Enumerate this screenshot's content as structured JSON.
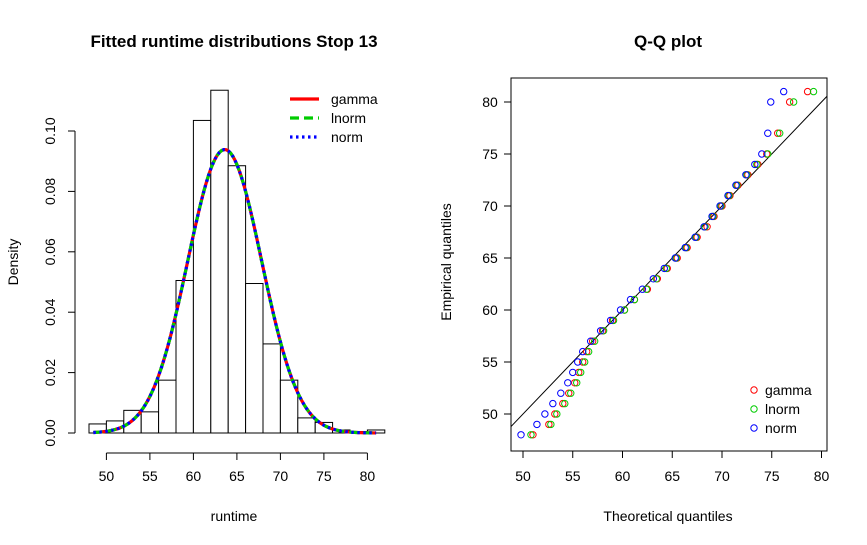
{
  "chart_data": [
    {
      "type": "histogram",
      "title": "Fitted runtime distributions Stop 13",
      "xlabel": "runtime",
      "ylabel": "Density",
      "xlim": [
        48,
        82
      ],
      "ylim": [
        0,
        0.115
      ],
      "x_ticks": [
        "50",
        "55",
        "60",
        "65",
        "70",
        "75",
        "80"
      ],
      "y_ticks": [
        "0.00",
        "0.02",
        "0.04",
        "0.06",
        "0.08",
        "0.10"
      ],
      "bins": [
        {
          "start": 48,
          "end": 50,
          "density": 0.003
        },
        {
          "start": 50,
          "end": 52,
          "density": 0.004
        },
        {
          "start": 52,
          "end": 54,
          "density": 0.0075
        },
        {
          "start": 54,
          "end": 56,
          "density": 0.007
        },
        {
          "start": 56,
          "end": 58,
          "density": 0.0175
        },
        {
          "start": 58,
          "end": 60,
          "density": 0.0505
        },
        {
          "start": 60,
          "end": 62,
          "density": 0.1035
        },
        {
          "start": 62,
          "end": 64,
          "density": 0.1135
        },
        {
          "start": 64,
          "end": 66,
          "density": 0.0885
        },
        {
          "start": 66,
          "end": 68,
          "density": 0.0495
        },
        {
          "start": 68,
          "end": 70,
          "density": 0.0295
        },
        {
          "start": 70,
          "end": 72,
          "density": 0.0175
        },
        {
          "start": 72,
          "end": 74,
          "density": 0.005
        },
        {
          "start": 74,
          "end": 76,
          "density": 0.0035
        },
        {
          "start": 76,
          "end": 78,
          "density": 0.001
        },
        {
          "start": 78,
          "end": 80,
          "density": 0.0005
        },
        {
          "start": 80,
          "end": 82,
          "density": 0.001
        }
      ],
      "fits": [
        {
          "name": "gamma",
          "color": "#ff0000",
          "dash": "solid",
          "mean": 63.6,
          "sd": 4.25
        },
        {
          "name": "lnorm",
          "color": "#00cc00",
          "dash": "dashed",
          "mean": 63.6,
          "sd": 4.25
        },
        {
          "name": "norm",
          "color": "#0000ff",
          "dash": "dotted",
          "mean": 63.6,
          "sd": 4.25
        }
      ],
      "legend": {
        "placement": "top-right",
        "entries": [
          "gamma",
          "lnorm",
          "norm"
        ]
      }
    },
    {
      "type": "scatter",
      "title": "Q-Q plot",
      "xlabel": "Theoretical quantiles",
      "ylabel": "Empirical quantiles",
      "xlim": [
        49,
        80
      ],
      "ylim": [
        47,
        82
      ],
      "x_ticks": [
        "50",
        "55",
        "60",
        "65",
        "70",
        "75",
        "80"
      ],
      "y_ticks": [
        "50",
        "55",
        "60",
        "65",
        "70",
        "75",
        "80"
      ],
      "reference_line": "y = x",
      "series": [
        {
          "name": "gamma",
          "color": "#ff0000",
          "points": [
            [
              51.0,
              48
            ],
            [
              52.6,
              49
            ],
            [
              53.2,
              50
            ],
            [
              54.0,
              51
            ],
            [
              54.6,
              52
            ],
            [
              55.2,
              53
            ],
            [
              55.6,
              54
            ],
            [
              56.0,
              55
            ],
            [
              56.4,
              56
            ],
            [
              57.0,
              57
            ],
            [
              58.0,
              58
            ],
            [
              59.0,
              59
            ],
            [
              60.2,
              60
            ],
            [
              61.2,
              61
            ],
            [
              62.5,
              62
            ],
            [
              63.5,
              63
            ],
            [
              64.5,
              64
            ],
            [
              65.5,
              65
            ],
            [
              66.5,
              66
            ],
            [
              67.5,
              67
            ],
            [
              68.5,
              68
            ],
            [
              69.2,
              69
            ],
            [
              70.0,
              70
            ],
            [
              70.8,
              71
            ],
            [
              71.6,
              72
            ],
            [
              72.6,
              73
            ],
            [
              73.6,
              74
            ],
            [
              74.5,
              75
            ],
            [
              75.6,
              77
            ],
            [
              76.8,
              80
            ],
            [
              78.6,
              81
            ]
          ]
        },
        {
          "name": "lnorm",
          "color": "#00cc00",
          "points": [
            [
              50.8,
              48
            ],
            [
              52.8,
              49
            ],
            [
              53.4,
              50
            ],
            [
              54.2,
              51
            ],
            [
              54.8,
              52
            ],
            [
              55.4,
              53
            ],
            [
              55.8,
              54
            ],
            [
              56.2,
              55
            ],
            [
              56.6,
              56
            ],
            [
              57.2,
              57
            ],
            [
              58.1,
              58
            ],
            [
              59.1,
              59
            ],
            [
              60.2,
              60
            ],
            [
              61.2,
              61
            ],
            [
              62.4,
              62
            ],
            [
              63.4,
              63
            ],
            [
              64.4,
              64
            ],
            [
              65.4,
              65
            ],
            [
              66.4,
              66
            ],
            [
              67.4,
              67
            ],
            [
              68.3,
              68
            ],
            [
              69.1,
              69
            ],
            [
              69.9,
              70
            ],
            [
              70.7,
              71
            ],
            [
              71.5,
              72
            ],
            [
              72.5,
              73
            ],
            [
              73.5,
              74
            ],
            [
              74.6,
              75
            ],
            [
              75.8,
              77
            ],
            [
              77.2,
              80
            ],
            [
              79.2,
              81
            ]
          ]
        },
        {
          "name": "norm",
          "color": "#0000ff",
          "points": [
            [
              49.8,
              48
            ],
            [
              51.4,
              49
            ],
            [
              52.2,
              50
            ],
            [
              53.0,
              51
            ],
            [
              53.8,
              52
            ],
            [
              54.5,
              53
            ],
            [
              55.0,
              54
            ],
            [
              55.5,
              55
            ],
            [
              56.0,
              56
            ],
            [
              56.8,
              57
            ],
            [
              57.8,
              58
            ],
            [
              58.8,
              59
            ],
            [
              59.8,
              60
            ],
            [
              60.8,
              61
            ],
            [
              62.0,
              62
            ],
            [
              63.1,
              63
            ],
            [
              64.2,
              64
            ],
            [
              65.3,
              65
            ],
            [
              66.3,
              66
            ],
            [
              67.3,
              67
            ],
            [
              68.2,
              68
            ],
            [
              69.0,
              69
            ],
            [
              69.8,
              70
            ],
            [
              70.6,
              71
            ],
            [
              71.4,
              72
            ],
            [
              72.4,
              73
            ],
            [
              73.3,
              74
            ],
            [
              74.0,
              75
            ],
            [
              74.6,
              77
            ],
            [
              74.9,
              80
            ],
            [
              76.2,
              81
            ]
          ]
        }
      ],
      "legend": {
        "placement": "bottom-right",
        "entries": [
          "gamma",
          "lnorm",
          "norm"
        ]
      }
    }
  ]
}
